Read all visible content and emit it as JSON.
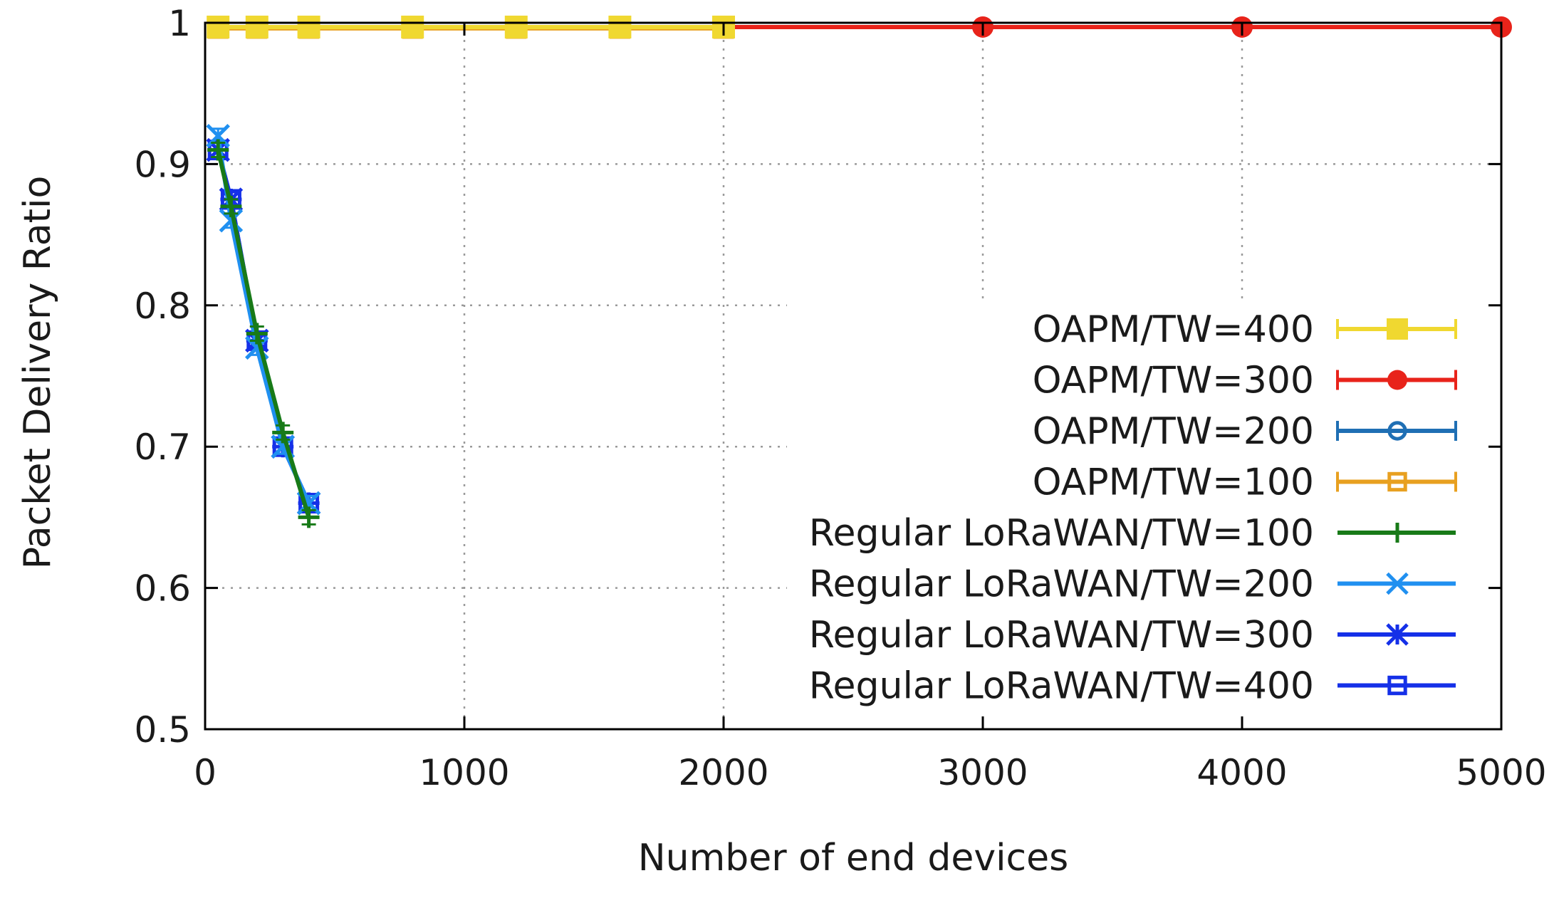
{
  "chart_data": {
    "type": "line",
    "title": "",
    "xlabel": "Number of end devices",
    "ylabel": "Packet Delivery Ratio",
    "xlim": [
      0,
      5000
    ],
    "ylim": [
      0.5,
      1.0
    ],
    "xticks": [
      0,
      1000,
      2000,
      3000,
      4000,
      5000
    ],
    "yticks": [
      0.5,
      0.6,
      0.7,
      0.8,
      0.9,
      1.0
    ],
    "xtick_labels": [
      "0",
      "1000",
      "2000",
      "3000",
      "4000",
      "5000"
    ],
    "ytick_labels": [
      "0.5",
      "0.6",
      "0.7",
      "0.8",
      "0.9",
      "1"
    ],
    "grid": true,
    "legend_position": "right",
    "series": [
      {
        "name": "OAPM/TW=400",
        "color": "#f0d830",
        "marker": "filled-square",
        "x": [
          50,
          200,
          400,
          800,
          1200,
          1600,
          2000
        ],
        "y": [
          0.997,
          0.997,
          0.997,
          0.997,
          0.997,
          0.997,
          0.997
        ]
      },
      {
        "name": "OAPM/TW=300",
        "color": "#e8231a",
        "marker": "filled-circle",
        "x": [
          50,
          200,
          400,
          800,
          1200,
          1600,
          2000,
          3000,
          4000,
          5000
        ],
        "y": [
          0.997,
          0.997,
          0.997,
          0.997,
          0.997,
          0.997,
          0.997,
          0.997,
          0.997,
          0.997
        ]
      },
      {
        "name": "OAPM/TW=200",
        "color": "#1f6fb4",
        "marker": "open-circle",
        "x": [
          50,
          200,
          400,
          800,
          1200,
          1600,
          2000,
          3000,
          4000
        ],
        "y": [
          0.997,
          0.997,
          0.997,
          0.997,
          0.997,
          0.997,
          0.997,
          0.997,
          0.997
        ]
      },
      {
        "name": "OAPM/TW=100",
        "color": "#e8a020",
        "marker": "open-square",
        "x": [
          50,
          200,
          400,
          800,
          1200,
          1600,
          2000
        ],
        "y": [
          0.996,
          0.996,
          0.996,
          0.996,
          0.996,
          0.996,
          0.996
        ]
      },
      {
        "name": "Regular LoRaWAN/TW=100",
        "color": "#187a18",
        "marker": "plus",
        "x": [
          50,
          100,
          200,
          300,
          400
        ],
        "y": [
          0.91,
          0.87,
          0.78,
          0.71,
          0.65
        ]
      },
      {
        "name": "Regular LoRaWAN/TW=200",
        "color": "#2090f0",
        "marker": "cross",
        "x": [
          50,
          100,
          200,
          300,
          400
        ],
        "y": [
          0.92,
          0.86,
          0.77,
          0.7,
          0.66
        ]
      },
      {
        "name": "Regular LoRaWAN/TW=300",
        "color": "#1530e8",
        "marker": "asterisk",
        "x": [
          50,
          100,
          200,
          300,
          400
        ],
        "y": [
          0.91,
          0.875,
          0.775,
          0.7,
          0.66
        ]
      },
      {
        "name": "Regular LoRaWAN/TW=400",
        "color": "#1530e8",
        "marker": "open-square",
        "x": [
          50,
          100,
          200,
          300,
          400
        ],
        "y": [
          0.91,
          0.875,
          0.775,
          0.7,
          0.66
        ]
      }
    ]
  }
}
